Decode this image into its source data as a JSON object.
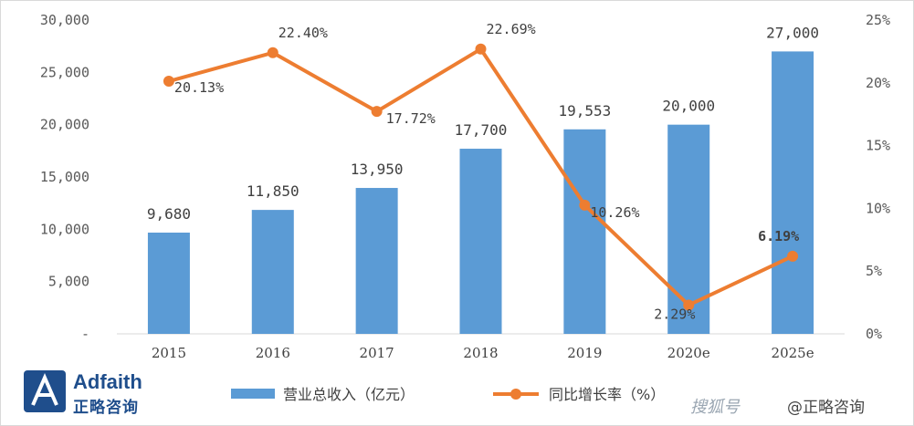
{
  "chart_data": {
    "type": "bar",
    "categories": [
      "2015",
      "2016",
      "2017",
      "2018",
      "2019",
      "2020e",
      "2025e"
    ],
    "series": [
      {
        "name": "营业总收入（亿元）",
        "type": "bar",
        "axis": "left",
        "values": [
          9680,
          11850,
          13950,
          17700,
          19553,
          20000,
          27000
        ],
        "labels": [
          "9,680",
          "11,850",
          "13,950",
          "17,700",
          "19,553",
          "20,000",
          "27,000"
        ],
        "color": "#5b9bd5"
      },
      {
        "name": "同比增长率（%）",
        "type": "line",
        "axis": "right",
        "values": [
          20.13,
          22.4,
          17.72,
          22.69,
          10.26,
          2.29,
          6.19
        ],
        "labels": [
          "20.13%",
          "22.40%",
          "17.72%",
          "22.69%",
          "10.26%",
          "2.29%",
          "6.19%"
        ],
        "color": "#ed7d31"
      }
    ],
    "y_left": {
      "ylim": [
        0,
        30000
      ],
      "ticks": [
        "-",
        "5,000",
        "10,000",
        "15,000",
        "20,000",
        "25,000",
        "30,000"
      ]
    },
    "y_right": {
      "ylim": [
        0,
        25
      ],
      "ticks": [
        "0%",
        "5%",
        "10%",
        "15%",
        "20%",
        "25%"
      ]
    },
    "grid": false,
    "legend": "bottom"
  },
  "logo": {
    "name": "Adfaith",
    "cn": "正略咨询"
  },
  "watermark": {
    "brand": "搜狐号",
    "handle": "@正略咨询"
  }
}
